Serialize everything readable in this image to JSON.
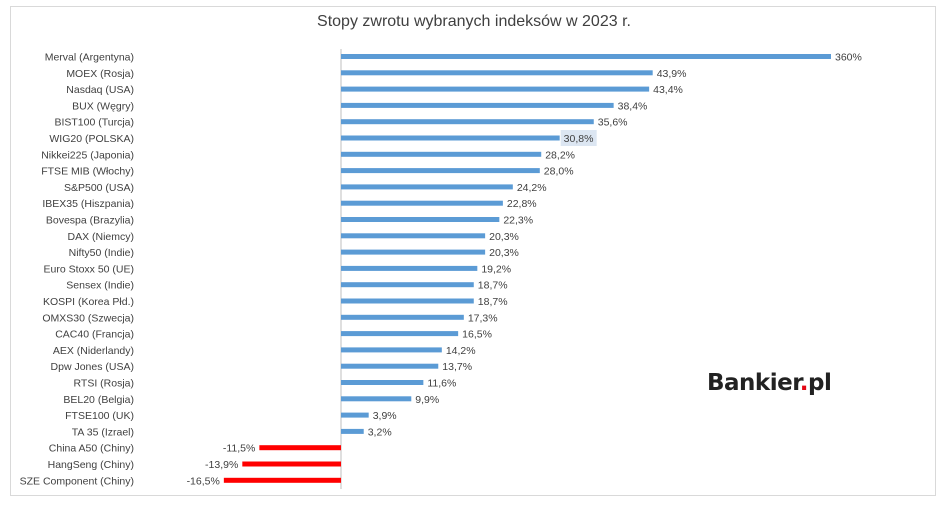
{
  "chart_data": {
    "type": "bar",
    "orientation": "horizontal",
    "title": "Stopy zwrotu wybranych indeksów w 2023 r.",
    "categories": [
      "Merval (Argentyna)",
      "MOEX (Rosja)",
      "Nasdaq (USA)",
      "BUX (Węgry)",
      "BIST100 (Turcja)",
      "WIG20 (POLSKA)",
      "Nikkei225 (Japonia)",
      "FTSE MIB (Włochy)",
      "S&P500 (USA)",
      "IBEX35 (Hiszpania)",
      "Bovespa (Brazylia)",
      "DAX (Niemcy)",
      "Nifty50 (Indie)",
      "Euro Stoxx 50 (UE)",
      "Sensex (Indie)",
      "KOSPI (Korea Płd.)",
      "OMXS30 (Szwecja)",
      "CAC40 (Francja)",
      "AEX (Niderlandy)",
      "Dpw Jones (USA)",
      "RTSI (Rosja)",
      "BEL20 (Belgia)",
      "FTSE100 (UK)",
      "TA 35 (Izrael)",
      "China A50 (Chiny)",
      "HangSeng (Chiny)",
      "SZE Component (Chiny)"
    ],
    "values": [
      360,
      43.9,
      43.4,
      38.4,
      35.6,
      30.8,
      28.2,
      28.0,
      24.2,
      22.8,
      22.3,
      20.3,
      20.3,
      19.2,
      18.7,
      18.7,
      17.3,
      16.5,
      14.2,
      13.7,
      11.6,
      9.9,
      3.9,
      3.2,
      -11.5,
      -13.9,
      -16.5
    ],
    "value_labels": [
      "360%",
      "43,9%",
      "43,4%",
      "38,4%",
      "35,6%",
      "30,8%",
      "28,2%",
      "28,0%",
      "24,2%",
      "22,8%",
      "22,3%",
      "20,3%",
      "20,3%",
      "19,2%",
      "18,7%",
      "18,7%",
      "17,3%",
      "16,5%",
      "14,2%",
      "13,7%",
      "11,6%",
      "9,9%",
      "3,9%",
      "3,2%",
      "-11,5%",
      "-13,9%",
      "-16,5%"
    ],
    "axis_break": "first bar (360%) is truncated; other bars to scale",
    "highlighted_category": "WIG20 (POLSKA)",
    "colors": {
      "positive": "#5b9bd5",
      "negative": "#ff0000",
      "highlight_bg": "#dce6f2",
      "axis": "#bfbfbf"
    },
    "grid": false,
    "legend": "none"
  },
  "logo": {
    "text": "Bankier",
    "dot": ".",
    "suffix": "pl"
  }
}
